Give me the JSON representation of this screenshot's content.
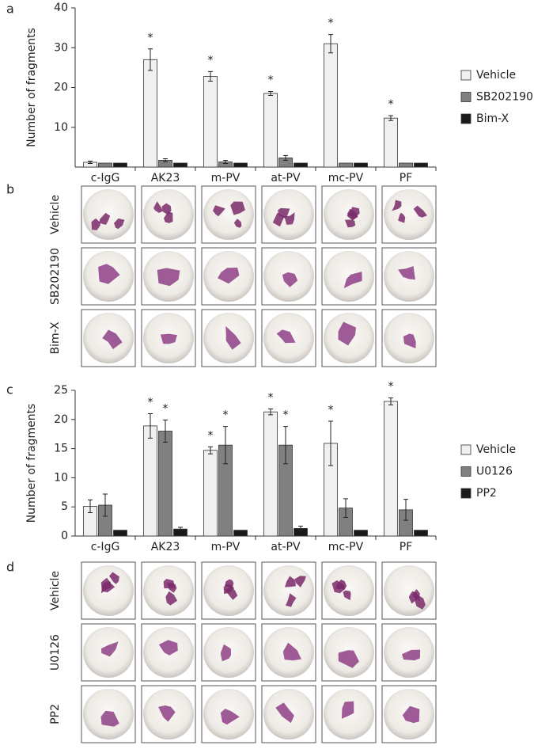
{
  "chart_data": [
    {
      "type": "bar",
      "y_label": "Number of fragments",
      "categories": [
        "c-IgG",
        "AK23",
        "m-PV",
        "at-PV",
        "mc-PV",
        "PF"
      ],
      "series": [
        {
          "name": "Vehicle",
          "color": "#f0f0f0",
          "values": [
            1.2,
            27,
            22.8,
            18.5,
            31,
            12.3
          ],
          "errors": [
            0.3,
            2.7,
            1.2,
            0.5,
            2.3,
            0.6
          ]
        },
        {
          "name": "SB202190",
          "color": "#808080",
          "values": [
            1,
            1.7,
            1.3,
            2.3,
            1,
            1
          ],
          "errors": [
            null,
            0.4,
            0.4,
            0.6,
            null,
            null
          ]
        },
        {
          "name": "Bim-X",
          "color": "#1a1a1a",
          "values": [
            1,
            1,
            1,
            1,
            1,
            1
          ],
          "errors": [
            null,
            null,
            null,
            null,
            null,
            null
          ]
        }
      ],
      "ylim": [
        0,
        40
      ],
      "yticks": [
        10,
        20,
        30,
        40
      ],
      "annotations": [
        {
          "label": "*",
          "category": 1,
          "series": 0
        },
        {
          "label": "*",
          "category": 2,
          "series": 0
        },
        {
          "label": "*",
          "category": 3,
          "series": 0
        },
        {
          "label": "*",
          "category": 4,
          "series": 0
        },
        {
          "label": "*",
          "category": 5,
          "series": 0
        }
      ]
    },
    {
      "type": "bar",
      "y_label": "Number of fragments",
      "categories": [
        "c-IgG",
        "AK23",
        "m-PV",
        "at-PV",
        "mc-PV",
        "PF"
      ],
      "series": [
        {
          "name": "Vehicle",
          "color": "#f0f0f0",
          "values": [
            5.1,
            18.9,
            14.7,
            21.3,
            15.9,
            23.1
          ],
          "errors": [
            1.1,
            2.1,
            0.6,
            0.5,
            3.8,
            0.6
          ]
        },
        {
          "name": "U0126",
          "color": "#808080",
          "values": [
            5.3,
            18,
            15.6,
            15.6,
            4.8,
            4.5
          ],
          "errors": [
            1.9,
            1.9,
            3.2,
            3.2,
            1.6,
            1.8
          ]
        },
        {
          "name": "PP2",
          "color": "#1a1a1a",
          "values": [
            1,
            1.2,
            1,
            1.3,
            1,
            1
          ],
          "errors": [
            null,
            0.3,
            null,
            0.4,
            null,
            null
          ]
        }
      ],
      "ylim": [
        0,
        25
      ],
      "yticks": [
        0,
        5,
        10,
        15,
        20,
        25
      ],
      "annotations": [
        {
          "label": "*",
          "category": 1,
          "series": 0
        },
        {
          "label": "*",
          "category": 2,
          "series": 0
        },
        {
          "label": "*",
          "category": 3,
          "series": 0
        },
        {
          "label": "*",
          "category": 4,
          "series": 0
        },
        {
          "label": "*",
          "category": 5,
          "series": 0
        },
        {
          "label": "*",
          "category": 1,
          "series": 1
        },
        {
          "label": "*",
          "category": 2,
          "series": 1
        },
        {
          "label": "*",
          "category": 3,
          "series": 1
        }
      ]
    }
  ],
  "panel_labels": [
    "a",
    "b",
    "c",
    "d"
  ],
  "image_grids": [
    {
      "row_labels": [
        "Vehicle",
        "SB202190",
        "Bim-X"
      ]
    },
    {
      "row_labels": [
        "Vehicle",
        "U0126",
        "PP2"
      ]
    }
  ]
}
